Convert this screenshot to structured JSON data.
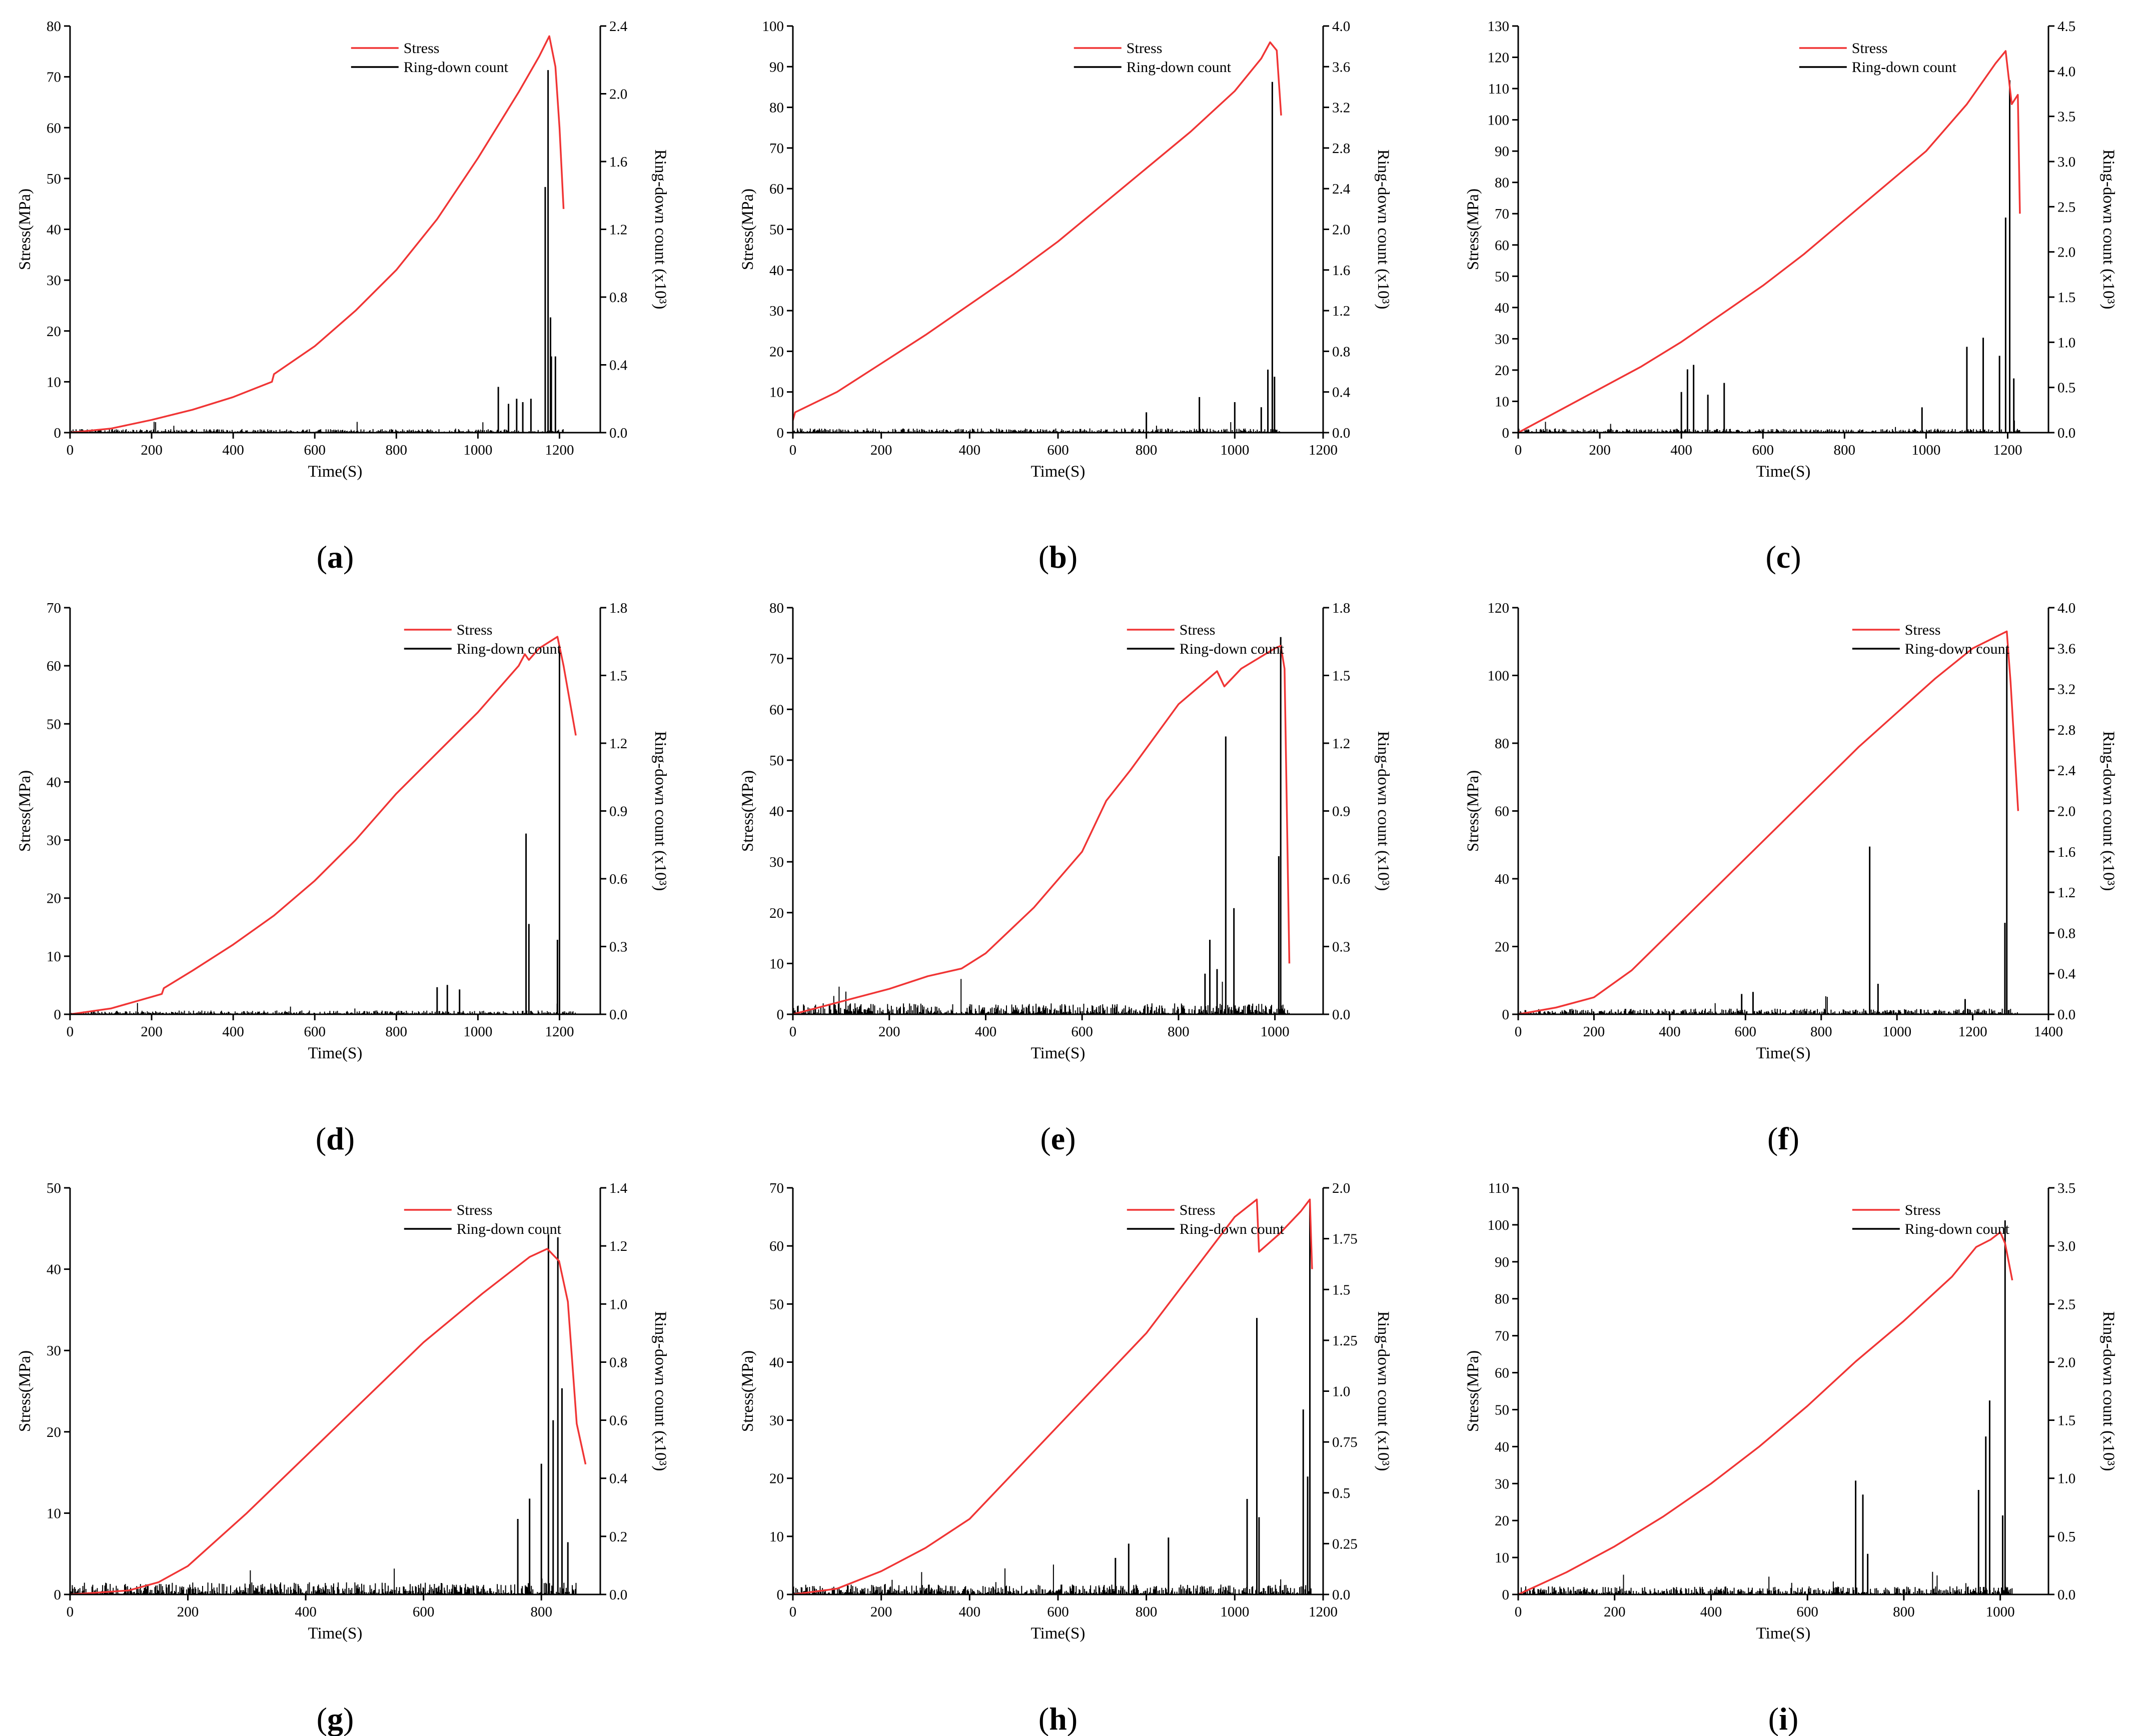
{
  "figure": {
    "colors": {
      "stress": "#f03535",
      "ring_down": "#000000",
      "axis": "#000000"
    }
  },
  "chart_data": [
    {
      "type": "line",
      "panel_label": "a",
      "xlabel": "Time(S)",
      "ylabel_left": "Stress(MPa)",
      "ylabel_right": "Ring-down count (x10³)",
      "legend": [
        "Stress",
        "Ring-down count"
      ],
      "legend_position": "top-center",
      "xlim": [
        0,
        1300
      ],
      "x_ticks": [
        0,
        200,
        400,
        600,
        800,
        1000,
        1200
      ],
      "ylim_left": [
        0,
        80
      ],
      "y_ticks_left": [
        0,
        10,
        20,
        30,
        40,
        50,
        60,
        70,
        80
      ],
      "ylim_right": [
        0,
        2.4
      ],
      "y_ticks_right": [
        "0.0",
        "0.4",
        "0.8",
        "1.2",
        "1.6",
        "2.0",
        "2.4"
      ],
      "stress": {
        "x": [
          0,
          100,
          200,
          300,
          400,
          495,
          500,
          600,
          700,
          800,
          900,
          1000,
          1100,
          1150,
          1175,
          1190,
          1200,
          1210
        ],
        "y": [
          0,
          0.8,
          2.5,
          4.5,
          7,
          10,
          11.5,
          17,
          24,
          32,
          42,
          54,
          67,
          74,
          78,
          72,
          60,
          44
        ]
      },
      "ring_down": {
        "noise": 0.015,
        "x_end": 1210,
        "spikes": [
          [
            1050,
            0.27
          ],
          [
            1075,
            0.17
          ],
          [
            1095,
            0.2
          ],
          [
            1110,
            0.18
          ],
          [
            1130,
            0.2
          ],
          [
            1165,
            1.45
          ],
          [
            1172,
            2.14
          ],
          [
            1180,
            0.45
          ],
          [
            1178,
            0.68
          ],
          [
            1190,
            0.45
          ]
        ]
      }
    },
    {
      "type": "line",
      "panel_label": "b",
      "xlabel": "Time(S)",
      "ylabel_left": "Stress(MPa)",
      "ylabel_right": "Ring-down count (x10³)",
      "legend": [
        "Stress",
        "Ring-down count"
      ],
      "legend_position": "top-center",
      "xlim": [
        0,
        1200
      ],
      "x_ticks": [
        0,
        200,
        400,
        600,
        800,
        1000,
        1200
      ],
      "ylim_left": [
        0,
        100
      ],
      "y_ticks_left": [
        0,
        10,
        20,
        30,
        40,
        50,
        60,
        70,
        80,
        90,
        100
      ],
      "ylim_right": [
        0,
        4.0
      ],
      "y_ticks_right": [
        "0.0",
        "0.4",
        "0.8",
        "1.2",
        "1.6",
        "2.0",
        "2.4",
        "2.8",
        "3.2",
        "3.6",
        "4.0"
      ],
      "stress": {
        "x": [
          0,
          5,
          100,
          200,
          300,
          400,
          500,
          600,
          700,
          800,
          900,
          1000,
          1060,
          1080,
          1095,
          1105
        ],
        "y": [
          3,
          5,
          10,
          17,
          24,
          31.5,
          39,
          47,
          56,
          65,
          74,
          84,
          92,
          96,
          94,
          78
        ]
      },
      "ring_down": {
        "noise": 0.03,
        "x_end": 1105,
        "spikes": [
          [
            800,
            0.2
          ],
          [
            920,
            0.35
          ],
          [
            1000,
            0.3
          ],
          [
            1060,
            0.25
          ],
          [
            1075,
            0.62
          ],
          [
            1085,
            3.45
          ],
          [
            1090,
            0.55
          ]
        ]
      }
    },
    {
      "type": "line",
      "panel_label": "c",
      "xlabel": "Time(S)",
      "ylabel_left": "Stress(MPa)",
      "ylabel_right": "Ring-down count (x10³)",
      "legend": [
        "Stress",
        "Ring-down count"
      ],
      "legend_position": "top-center",
      "xlim": [
        0,
        1300
      ],
      "x_ticks": [
        0,
        200,
        400,
        600,
        800,
        1000,
        1200
      ],
      "ylim_left": [
        0,
        130
      ],
      "y_ticks_left": [
        0,
        10,
        20,
        30,
        40,
        50,
        60,
        70,
        80,
        90,
        100,
        110,
        120,
        130
      ],
      "ylim_right": [
        0,
        4.5
      ],
      "y_ticks_right": [
        "0.0",
        "0.5",
        "1.0",
        "1.5",
        "2.0",
        "2.5",
        "3.0",
        "3.5",
        "4.0",
        "4.5"
      ],
      "stress": {
        "x": [
          0,
          100,
          200,
          300,
          400,
          500,
          600,
          700,
          800,
          900,
          1000,
          1100,
          1170,
          1195,
          1210,
          1225,
          1230
        ],
        "y": [
          0,
          7,
          14,
          21,
          29,
          38,
          47,
          57,
          68,
          79,
          90,
          105,
          118,
          122,
          105,
          108,
          70
        ]
      },
      "ring_down": {
        "noise": 0.03,
        "x_end": 1230,
        "spikes": [
          [
            400,
            0.45
          ],
          [
            415,
            0.7
          ],
          [
            430,
            0.75
          ],
          [
            465,
            0.42
          ],
          [
            505,
            0.55
          ],
          [
            990,
            0.28
          ],
          [
            1100,
            0.95
          ],
          [
            1140,
            1.05
          ],
          [
            1180,
            0.85
          ],
          [
            1195,
            2.38
          ],
          [
            1205,
            3.9
          ],
          [
            1215,
            0.6
          ]
        ]
      }
    },
    {
      "type": "line",
      "panel_label": "d",
      "xlabel": "Time(S)",
      "ylabel_left": "Stress(MPa)",
      "ylabel_right": "Ring-down count (x10³)",
      "legend": [
        "Stress",
        "Ring-down count"
      ],
      "legend_position": "top-right",
      "xlim": [
        0,
        1300
      ],
      "x_ticks": [
        0,
        200,
        400,
        600,
        800,
        1000,
        1200
      ],
      "ylim_left": [
        0,
        70
      ],
      "y_ticks_left": [
        0,
        10,
        20,
        30,
        40,
        50,
        60,
        70
      ],
      "ylim_right": [
        0,
        1.8
      ],
      "y_ticks_right": [
        "0.0",
        "0.3",
        "0.6",
        "0.9",
        "1.2",
        "1.5",
        "1.8"
      ],
      "stress": {
        "x": [
          0,
          100,
          200,
          225,
          230,
          300,
          400,
          500,
          600,
          700,
          800,
          900,
          1000,
          1100,
          1115,
          1125,
          1150,
          1195,
          1210,
          1240
        ],
        "y": [
          0,
          1,
          3,
          3.5,
          4.5,
          7.5,
          12,
          17,
          23,
          30,
          38,
          45,
          52,
          60,
          62,
          61,
          63,
          65,
          60,
          48
        ]
      },
      "ring_down": {
        "noise": 0.012,
        "x_end": 1240,
        "spikes": [
          [
            900,
            0.12
          ],
          [
            925,
            0.13
          ],
          [
            955,
            0.11
          ],
          [
            1118,
            0.8
          ],
          [
            1125,
            0.4
          ],
          [
            1195,
            0.33
          ],
          [
            1200,
            1.62
          ]
        ]
      }
    },
    {
      "type": "line",
      "panel_label": "e",
      "xlabel": "Time(S)",
      "ylabel_left": "Stress(MPa)",
      "ylabel_right": "Ring-down count (x10³)",
      "legend": [
        "Stress",
        "Ring-down count"
      ],
      "legend_position": "top-right",
      "xlim": [
        0,
        1100
      ],
      "x_ticks": [
        0,
        200,
        400,
        600,
        800,
        1000
      ],
      "ylim_left": [
        0,
        80
      ],
      "y_ticks_left": [
        0,
        10,
        20,
        30,
        40,
        50,
        60,
        70,
        80
      ],
      "ylim_right": [
        0,
        1.8
      ],
      "y_ticks_right": [
        "0.0",
        "0.3",
        "0.6",
        "0.9",
        "1.2",
        "1.5",
        "1.8"
      ],
      "stress": {
        "x": [
          0,
          100,
          200,
          280,
          350,
          400,
          500,
          600,
          650,
          700,
          800,
          880,
          895,
          930,
          1000,
          1012,
          1020,
          1030
        ],
        "y": [
          0,
          2.5,
          5,
          7.5,
          9,
          12,
          21,
          32,
          42,
          48,
          61,
          67.5,
          64.5,
          68,
          72,
          72.5,
          68,
          10
        ]
      },
      "ring_down": {
        "noise": 0.035,
        "x_end": 1030,
        "spikes": [
          [
            855,
            0.18
          ],
          [
            865,
            0.33
          ],
          [
            880,
            0.2
          ],
          [
            898,
            1.23
          ],
          [
            915,
            0.47
          ],
          [
            1008,
            0.7
          ],
          [
            1012,
            1.67
          ]
        ]
      }
    },
    {
      "type": "line",
      "panel_label": "f",
      "xlabel": "Time(S)",
      "ylabel_left": "Stress(MPa)",
      "ylabel_right": "Ring-down count (x10³)",
      "legend": [
        "Stress",
        "Ring-down count"
      ],
      "legend_position": "top-right",
      "xlim": [
        0,
        1400
      ],
      "x_ticks": [
        0,
        200,
        400,
        600,
        800,
        1000,
        1200,
        1400
      ],
      "ylim_left": [
        0,
        120
      ],
      "y_ticks_left": [
        0,
        20,
        40,
        60,
        80,
        100,
        120
      ],
      "ylim_right": [
        0,
        4.0
      ],
      "y_ticks_right": [
        "0.0",
        "0.4",
        "0.8",
        "1.2",
        "1.6",
        "2.0",
        "2.4",
        "2.8",
        "3.2",
        "3.6",
        "4.0"
      ],
      "stress": {
        "x": [
          0,
          100,
          200,
          300,
          400,
          500,
          600,
          700,
          800,
          900,
          1000,
          1100,
          1200,
          1290,
          1300,
          1320
        ],
        "y": [
          0,
          2,
          5,
          13,
          24,
          35,
          46,
          57,
          68,
          79,
          89,
          99,
          108,
          113,
          98,
          60
        ]
      },
      "ring_down": {
        "noise": 0.04,
        "x_end": 1320,
        "spikes": [
          [
            590,
            0.2
          ],
          [
            620,
            0.22
          ],
          [
            928,
            1.65
          ],
          [
            950,
            0.3
          ],
          [
            1180,
            0.15
          ],
          [
            1285,
            0.9
          ],
          [
            1290,
            3.6
          ]
        ]
      }
    },
    {
      "type": "line",
      "panel_label": "g",
      "xlabel": "Time(S)",
      "ylabel_left": "Stress(MPa)",
      "ylabel_right": "Ring-down count (x10³)",
      "legend": [
        "Stress",
        "Ring-down count"
      ],
      "legend_position": "top-right",
      "xlim": [
        0,
        900
      ],
      "x_ticks": [
        0,
        200,
        400,
        600,
        800
      ],
      "ylim_left": [
        0,
        50
      ],
      "y_ticks_left": [
        0,
        10,
        20,
        30,
        40,
        50
      ],
      "ylim_right": [
        0,
        1.4
      ],
      "y_ticks_right": [
        "0.0",
        "0.2",
        "0.4",
        "0.6",
        "0.8",
        "1.0",
        "1.2",
        "1.4"
      ],
      "stress": {
        "x": [
          0,
          100,
          150,
          200,
          300,
          400,
          500,
          600,
          700,
          780,
          810,
          830,
          845,
          860,
          875
        ],
        "y": [
          0,
          0.5,
          1.5,
          3.5,
          10,
          17,
          24,
          31,
          37,
          41.5,
          42.5,
          41,
          36,
          21,
          16
        ]
      },
      "ring_down": {
        "noise": 0.03,
        "x_end": 860,
        "spikes": [
          [
            760,
            0.26
          ],
          [
            780,
            0.33
          ],
          [
            800,
            0.45
          ],
          [
            812,
            1.24
          ],
          [
            820,
            0.6
          ],
          [
            828,
            1.23
          ],
          [
            835,
            0.71
          ],
          [
            845,
            0.18
          ]
        ]
      }
    },
    {
      "type": "line",
      "panel_label": "h",
      "xlabel": "Time(S)",
      "ylabel_left": "Stress(MPa)",
      "ylabel_right": "Ring-down count (x10³)",
      "legend": [
        "Stress",
        "Ring-down count"
      ],
      "legend_position": "top-right",
      "xlim": [
        0,
        1200
      ],
      "x_ticks": [
        0,
        200,
        400,
        600,
        800,
        1000,
        1200
      ],
      "ylim_left": [
        0,
        70
      ],
      "y_ticks_left": [
        0,
        10,
        20,
        30,
        40,
        50,
        60,
        70
      ],
      "ylim_right": [
        0,
        2.0
      ],
      "y_ticks_right": [
        "0.0",
        "0.25",
        "0.5",
        "0.75",
        "1.0",
        "1.25",
        "1.5",
        "1.75",
        "2.0"
      ],
      "stress": {
        "x": [
          0,
          100,
          200,
          300,
          400,
          500,
          600,
          700,
          800,
          900,
          1000,
          1050,
          1055,
          1100,
          1150,
          1170,
          1175
        ],
        "y": [
          0,
          1,
          4,
          8,
          13,
          21,
          29,
          37,
          45,
          55,
          65,
          68,
          59,
          62,
          66,
          68,
          56
        ]
      },
      "ring_down": {
        "noise": 0.035,
        "x_end": 1175,
        "spikes": [
          [
            730,
            0.18
          ],
          [
            760,
            0.25
          ],
          [
            850,
            0.28
          ],
          [
            1028,
            0.47
          ],
          [
            1050,
            1.36
          ],
          [
            1055,
            0.38
          ],
          [
            1155,
            0.91
          ],
          [
            1165,
            0.58
          ],
          [
            1170,
            1.92
          ]
        ]
      }
    },
    {
      "type": "line",
      "panel_label": "i",
      "xlabel": "Time(S)",
      "ylabel_left": "Stress(MPa)",
      "ylabel_right": "Ring-down count (x10³)",
      "legend": [
        "Stress",
        "Ring-down count"
      ],
      "legend_position": "top-right",
      "xlim": [
        0,
        1100
      ],
      "x_ticks": [
        0,
        200,
        400,
        600,
        800,
        1000
      ],
      "ylim_left": [
        0,
        110
      ],
      "y_ticks_left": [
        0,
        10,
        20,
        30,
        40,
        50,
        60,
        70,
        80,
        90,
        100,
        110
      ],
      "ylim_right": [
        0,
        3.5
      ],
      "y_ticks_right": [
        "0.0",
        "0.5",
        "1.0",
        "1.5",
        "2.0",
        "2.5",
        "3.0",
        "3.5"
      ],
      "stress": {
        "x": [
          0,
          100,
          200,
          300,
          400,
          500,
          600,
          700,
          800,
          900,
          950,
          980,
          1000,
          1010,
          1025
        ],
        "y": [
          0,
          6,
          13,
          21,
          30,
          40,
          51,
          63,
          74,
          86,
          94,
          96,
          98,
          95,
          85
        ]
      },
      "ring_down": {
        "noise": 0.05,
        "x_end": 1025,
        "spikes": [
          [
            700,
            0.98
          ],
          [
            715,
            0.86
          ],
          [
            725,
            0.35
          ],
          [
            955,
            0.9
          ],
          [
            970,
            1.36
          ],
          [
            978,
            1.67
          ],
          [
            1005,
            0.68
          ],
          [
            1010,
            3.22
          ]
        ]
      }
    }
  ]
}
